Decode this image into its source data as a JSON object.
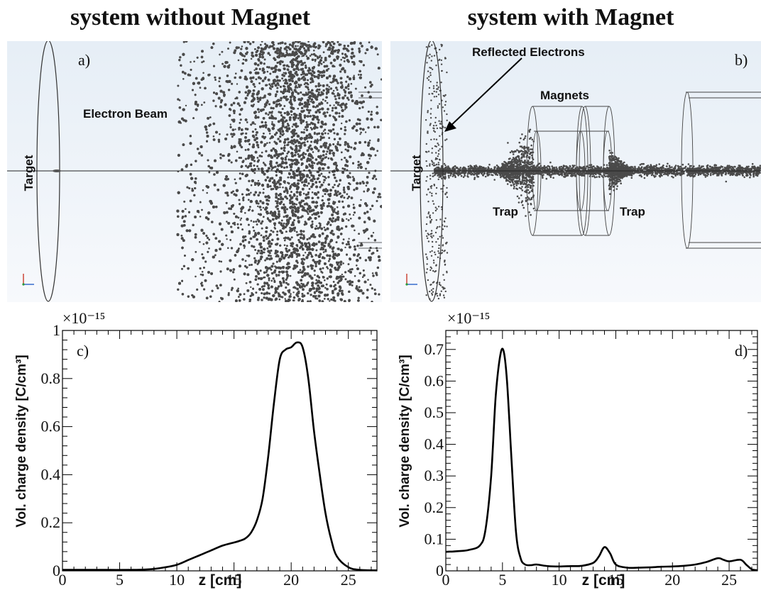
{
  "titles": {
    "left": "system without Magnet",
    "right": "system with Magnet"
  },
  "sim_left": {
    "panel_label": "a)",
    "target_label": "Target",
    "beam_label": "Electron Beam"
  },
  "sim_right": {
    "panel_label": "b)",
    "target_label": "Target",
    "reflected_label": "Reflected Electrons",
    "magnets_label": "Magnets",
    "trap_left_label": "Trap",
    "trap_right_label": "Trap"
  },
  "colors": {
    "sim_background_top": "#e6eef6",
    "sim_background_bottom": "#f7f9fc",
    "particles": "#4a4a4a",
    "curve": "#000000"
  },
  "chart_data": [
    {
      "type": "line",
      "panel_label": "c)",
      "xlabel": "z [cm]",
      "ylabel": "Vol. charge density [C/cm³]",
      "y_multiplier": "×10⁻¹⁵",
      "xlim": [
        0,
        27.5
      ],
      "ylim": [
        0,
        1.0
      ],
      "x_ticks": [
        0,
        5,
        10,
        15,
        20,
        25
      ],
      "y_ticks": [
        0,
        0.2,
        0.4,
        0.6,
        0.8,
        1
      ],
      "x_tick_labels": [
        "0",
        "5",
        "10",
        "15",
        "20",
        "25"
      ],
      "y_tick_labels": [
        "0",
        "0.2",
        "0.4",
        "0.6",
        "0.8",
        "1"
      ],
      "grid": false,
      "x": [
        0,
        2,
        4,
        6,
        7,
        8,
        9,
        10,
        11,
        12,
        13,
        14,
        15,
        15.5,
        16,
        16.5,
        17,
        17.5,
        18,
        18.5,
        19,
        19.5,
        20,
        20.5,
        21,
        21.5,
        22,
        22.5,
        23,
        23.5,
        24,
        25,
        26,
        27.5
      ],
      "y": [
        0.004,
        0.004,
        0.004,
        0.004,
        0.005,
        0.008,
        0.015,
        0.025,
        0.045,
        0.065,
        0.085,
        0.105,
        0.118,
        0.125,
        0.135,
        0.16,
        0.21,
        0.3,
        0.48,
        0.7,
        0.88,
        0.92,
        0.93,
        0.95,
        0.93,
        0.8,
        0.58,
        0.4,
        0.24,
        0.13,
        0.06,
        0.015,
        0.004,
        0.002
      ]
    },
    {
      "type": "line",
      "panel_label": "d)",
      "xlabel": "z [cm]",
      "ylabel": "Vol. charge density [C/cm³]",
      "y_multiplier": "×10⁻¹⁵",
      "xlim": [
        0,
        27.5
      ],
      "ylim": [
        0,
        0.76
      ],
      "x_ticks": [
        0,
        5,
        10,
        15,
        20,
        25
      ],
      "y_ticks": [
        0,
        0.1,
        0.2,
        0.3,
        0.4,
        0.5,
        0.6,
        0.7
      ],
      "x_tick_labels": [
        "0",
        "5",
        "10",
        "15",
        "20",
        "25"
      ],
      "y_tick_labels": [
        "0",
        "0.1",
        "0.2",
        "0.3",
        "0.4",
        "0.5",
        "0.6",
        "0.7"
      ],
      "grid": false,
      "x": [
        0,
        1,
        2,
        3,
        3.5,
        4,
        4.4,
        4.8,
        5.1,
        5.4,
        5.8,
        6.2,
        6.6,
        7,
        7.5,
        8,
        9,
        10,
        11,
        12,
        13,
        13.5,
        14,
        14.5,
        15,
        16,
        17,
        18,
        19,
        20,
        21,
        22,
        23,
        24,
        24.5,
        25,
        26,
        26.5,
        27,
        27.5
      ],
      "y": [
        0.06,
        0.062,
        0.066,
        0.08,
        0.13,
        0.3,
        0.55,
        0.68,
        0.695,
        0.6,
        0.35,
        0.12,
        0.04,
        0.02,
        0.018,
        0.02,
        0.015,
        0.014,
        0.015,
        0.016,
        0.025,
        0.045,
        0.075,
        0.055,
        0.02,
        0.01,
        0.01,
        0.011,
        0.013,
        0.014,
        0.016,
        0.02,
        0.028,
        0.04,
        0.035,
        0.03,
        0.035,
        0.02,
        0.005,
        0.002
      ]
    }
  ]
}
